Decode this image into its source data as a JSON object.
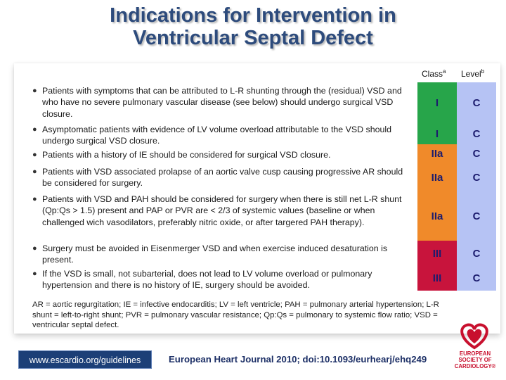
{
  "title_line1": "Indications for Intervention in",
  "title_line2": "Ventricular Septal Defect",
  "headers": {
    "class": "Class",
    "class_sup": "a",
    "level": "Level",
    "level_sup": "b"
  },
  "rows": [
    {
      "text": "Patients with symptoms that can be attributed to L-R shunting through the (residual) VSD and who have no severe pulmonary vascular disease (see below) should undergo surgical VSD closure.",
      "class": "I",
      "level": "C"
    },
    {
      "text": "Asymptomatic patients with evidence of LV volume overload attributable to the VSD should undergo surgical VSD closure.",
      "class": "I",
      "level": "C"
    },
    {
      "text": "Patients with a history of IE should be considered for surgical VSD closure.",
      "class": "IIa",
      "level": "C"
    },
    {
      "text": "Patients with VSD associated prolapse of an aortic valve cusp causing progressive AR should be considered for surgery.",
      "class": "IIa",
      "level": "C"
    },
    {
      "text": "Patients with VSD and PAH should be considered for surgery when there is still net L-R shunt (Qp:Qs > 1.5) present and PAP or PVR are < 2/3 of systemic values (baseline or when challenged wich vasodilators, preferably nitric oxide, or after targered PAH therapy).",
      "class": "IIa",
      "level": "C"
    },
    {
      "text": "Surgery must be avoided in Eisenmerger VSD and when exercise induced desaturation is present.",
      "class": "III",
      "level": "C"
    },
    {
      "text": "If the VSD is small, not subarterial, does not lead to LV volume overload or pulmonary hypertension and there is no history of IE, surgery should be avoided.",
      "class": "III",
      "level": "C"
    }
  ],
  "class_colors": {
    "I": "#27a54a",
    "IIa": "#f08a2a",
    "III": "#c8143c"
  },
  "footnote": "AR = aortic regurgitation; IE = infective endocarditis; LV = left ventricle; PAH = pulmonary arterial hypertension; L-R shunt = left-to-right shunt; PVR = pulmonary vascular resistance; Qp:Qs = pulmonary to systemic flow ratio; VSD = ventricular septal defect.",
  "url": "www.escardio.org/guidelines",
  "citation": "European Heart Journal 2010; doi:10.1093/eurhearj/ehq249",
  "logo_text": "EUROPEAN SOCIETY OF CARDIOLOGY®"
}
